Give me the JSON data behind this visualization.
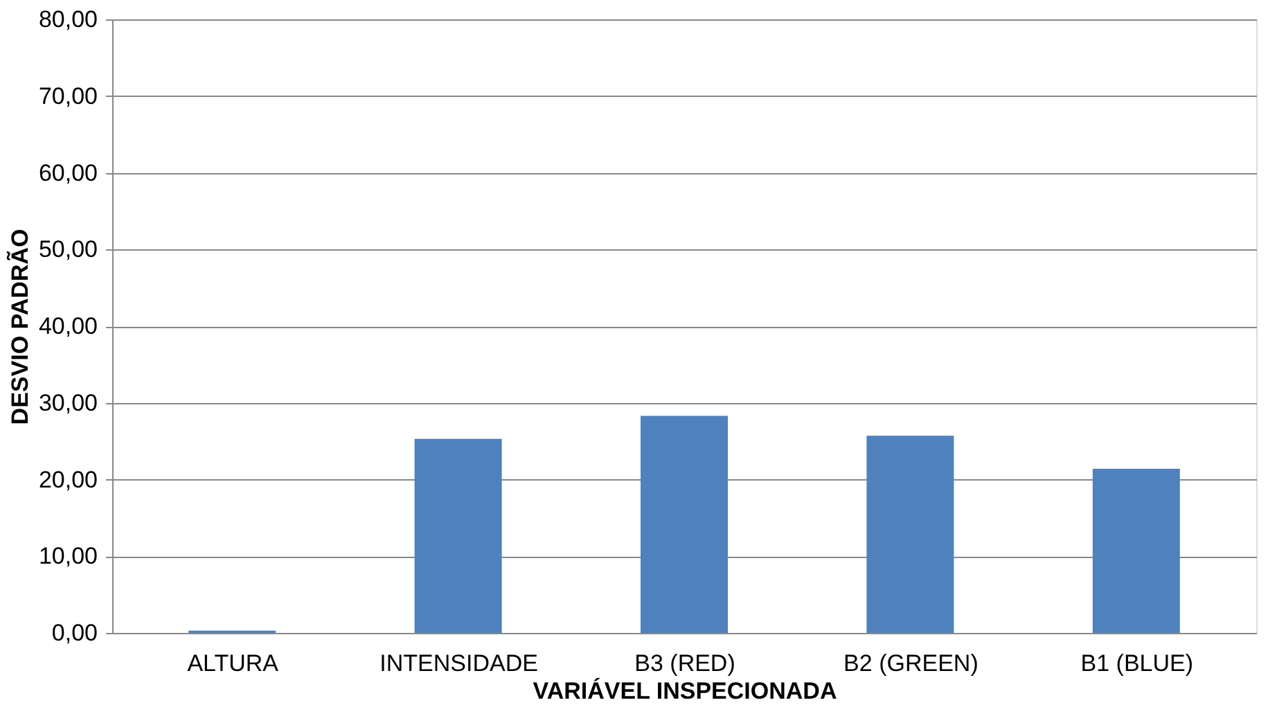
{
  "chart_data": {
    "type": "bar",
    "xlabel": "VARIÁVEL INSPECIONADA",
    "ylabel": "DESVIO PADRÃO",
    "categories": [
      "ALTURA",
      "INTENSIDADE",
      "B3 (RED)",
      "B2 (GREEN)",
      "B1 (BLUE)"
    ],
    "values": [
      0.3,
      25.3,
      28.3,
      25.7,
      21.4
    ],
    "color": "#4f81bd",
    "ylim": [
      0,
      80
    ],
    "yticks": [
      {
        "value": 0,
        "label": "0,00"
      },
      {
        "value": 10,
        "label": "10,00"
      },
      {
        "value": 20,
        "label": "20,00"
      },
      {
        "value": 30,
        "label": "30,00"
      },
      {
        "value": 40,
        "label": "40,00"
      },
      {
        "value": 50,
        "label": "50,00"
      },
      {
        "value": 60,
        "label": "60,00"
      },
      {
        "value": 70,
        "label": "70,00"
      },
      {
        "value": 80,
        "label": "80,00"
      }
    ],
    "grid": "y"
  }
}
